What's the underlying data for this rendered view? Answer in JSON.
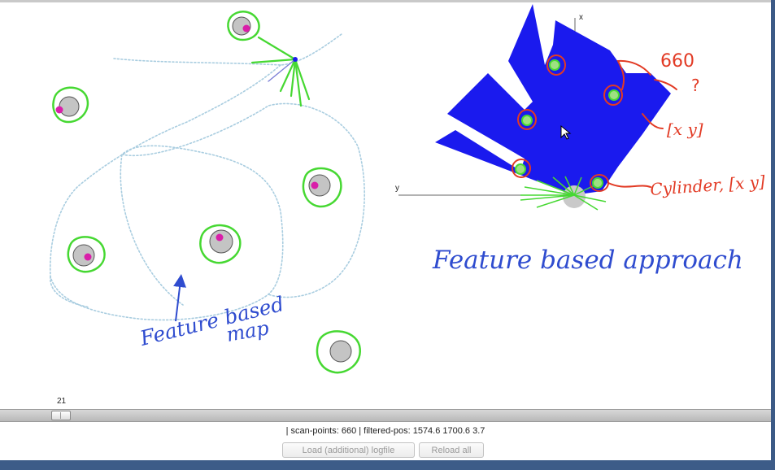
{
  "annotations": {
    "feature_map": [
      "Feature based",
      "map"
    ],
    "feature_approach": "Feature based approach",
    "scan_count": "660",
    "question_mark": "?",
    "xy_vector": "[x y]",
    "cylinder_label": "Cylinder, [x y]"
  },
  "axes": {
    "x": "x",
    "y": "y"
  },
  "controls": {
    "frame_number": "21",
    "status": "| scan-points: 660 | filtered-pos: 1574.6 1700.6 3.7",
    "load_button": "Load (additional) logfile",
    "reload_button": "Reload all"
  },
  "colors": {
    "scan_fill": "#1a1aee",
    "landmark_ring": "#46d832",
    "landmark_gray": "#c4c4c4",
    "landmark_dot": "#d91ea9",
    "trajectory": "#a9cde0",
    "ink_blue": "#2f4ccf",
    "ink_red": "#e23a24"
  },
  "icons": [
    "mouse-cursor-icon"
  ]
}
